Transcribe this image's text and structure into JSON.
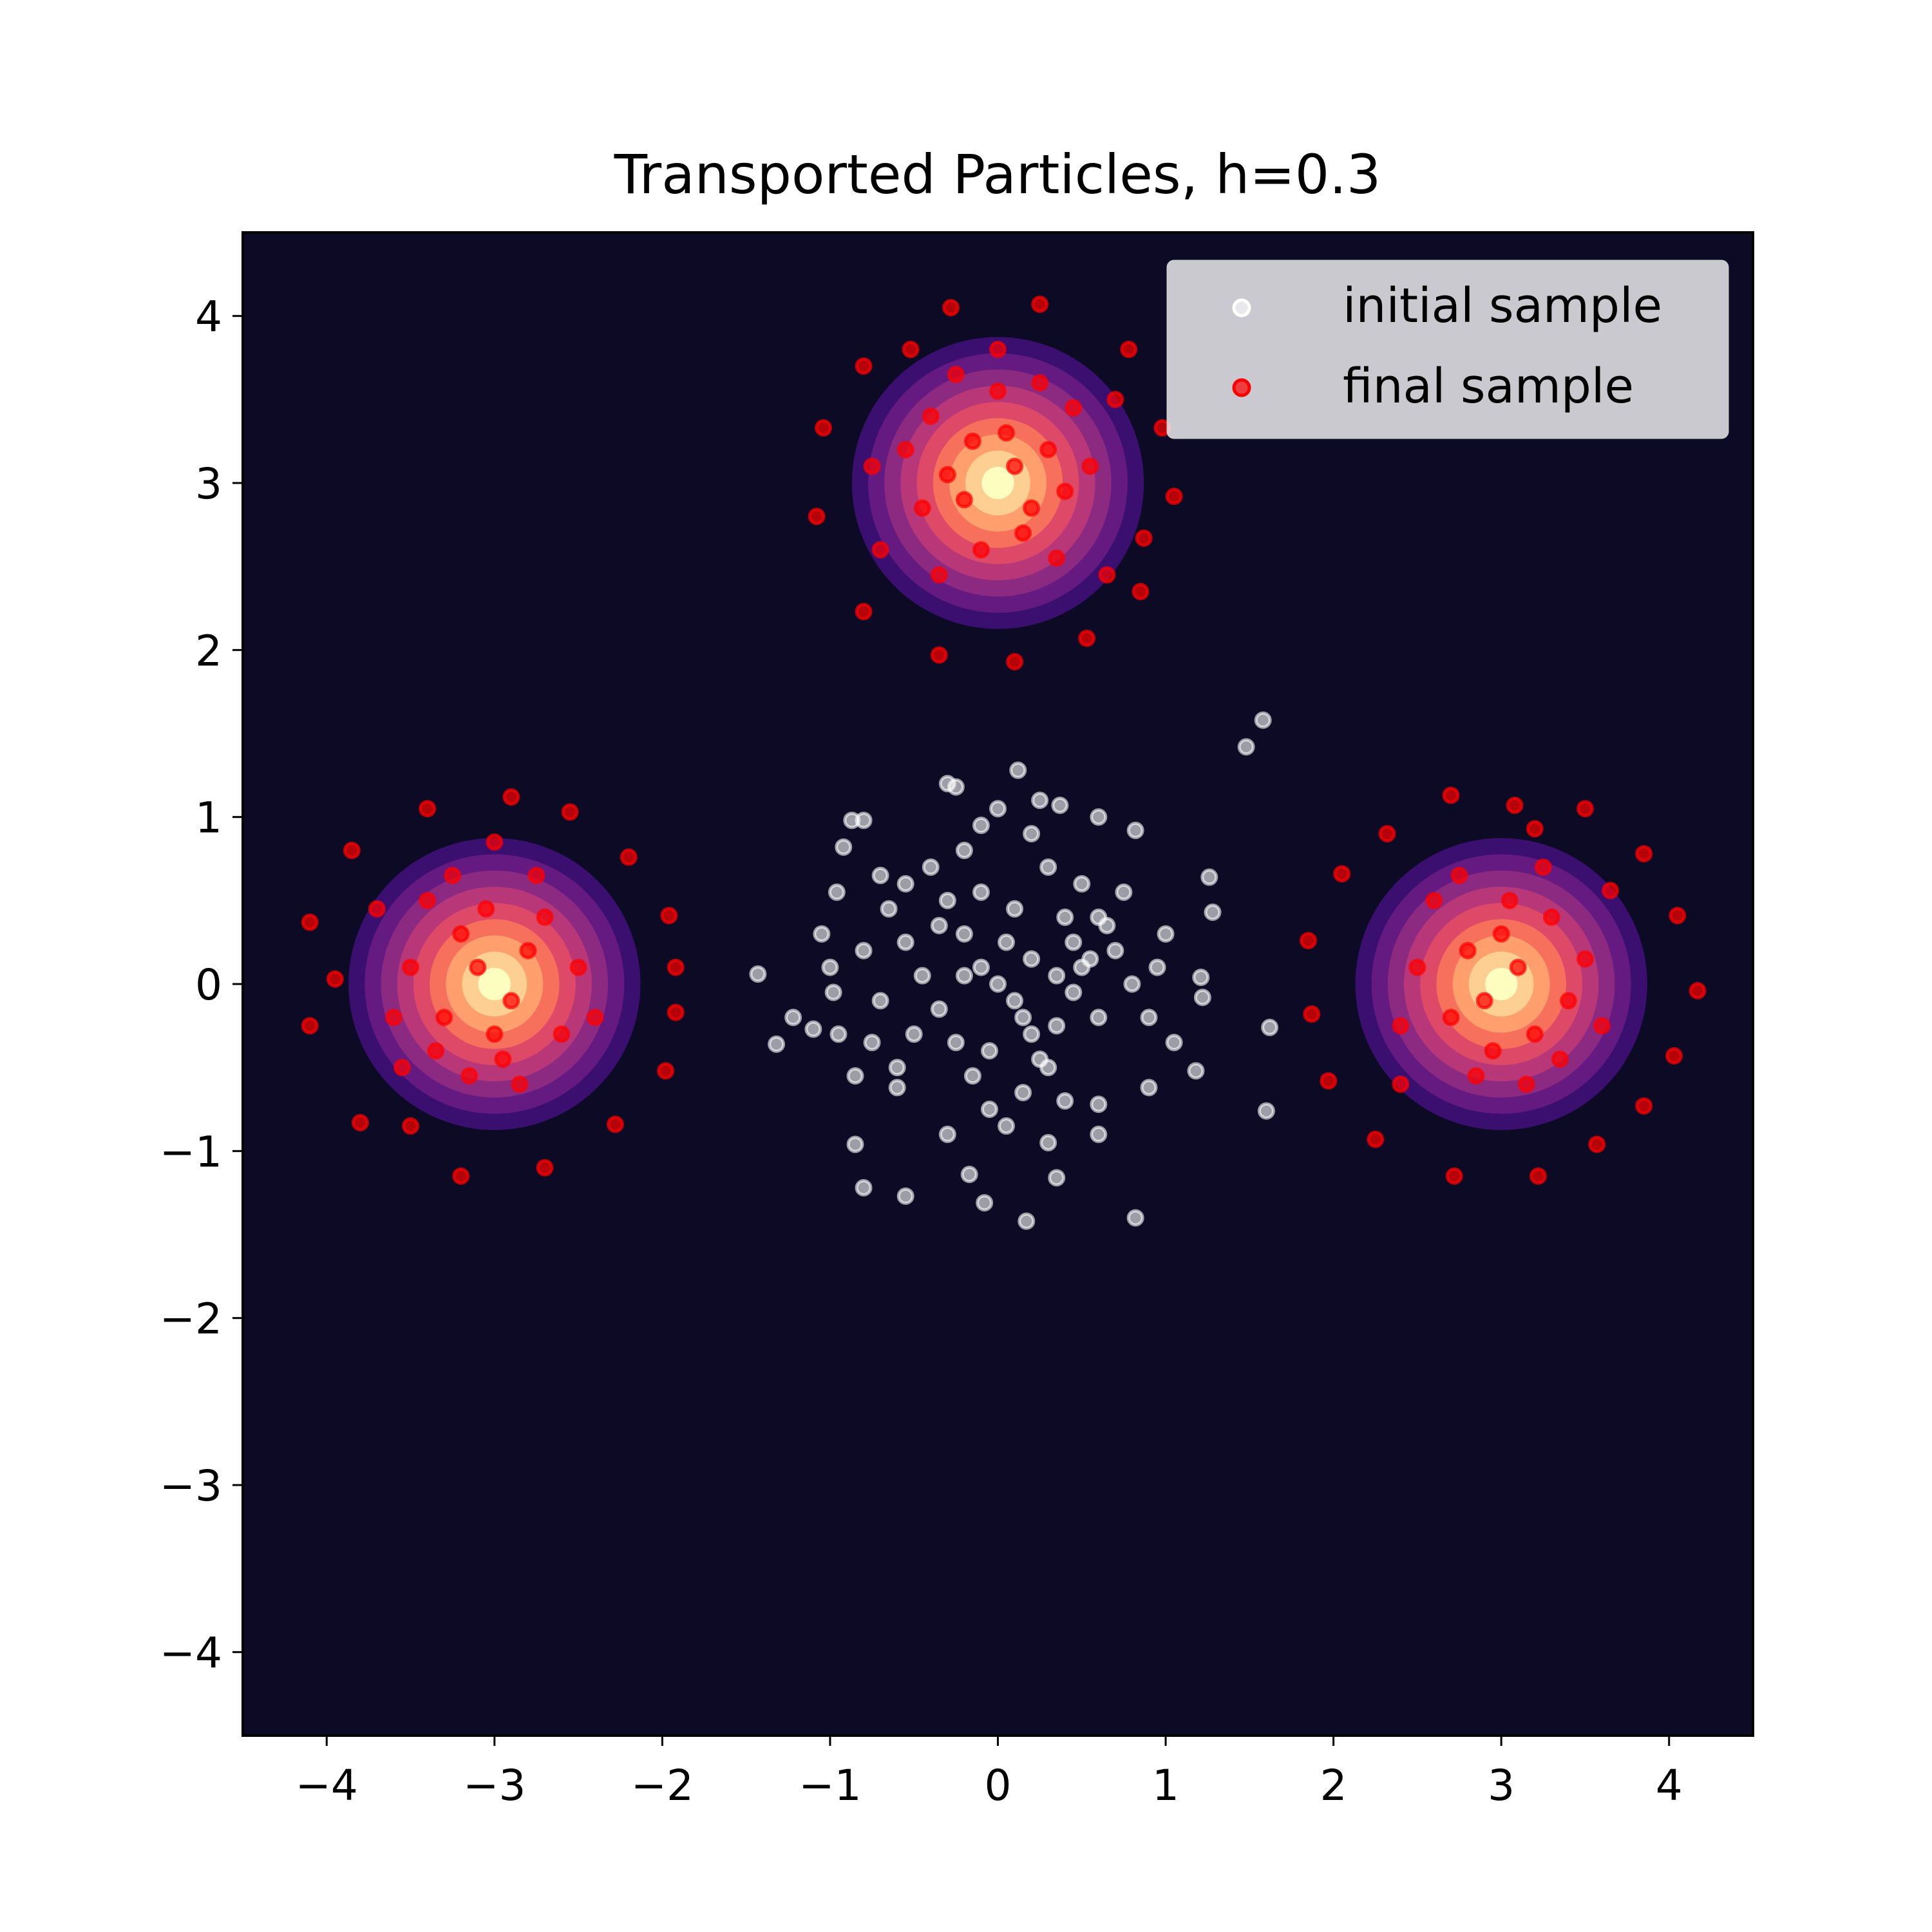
{
  "chart_data": {
    "type": "scatter",
    "title": "Transported Particles, h=0.3",
    "xlabel": "",
    "ylabel": "",
    "xlim": [
      -4.5,
      4.5
    ],
    "ylim": [
      -4.5,
      4.5
    ],
    "xticks": [
      -4,
      -3,
      -2,
      -1,
      0,
      1,
      2,
      3,
      4
    ],
    "yticks": [
      -4,
      -3,
      -2,
      -1,
      0,
      1,
      2,
      3,
      4
    ],
    "grid": false,
    "legend_position": "top-right",
    "background_color": "#0c0a24",
    "density_contours": {
      "centers": [
        [
          -3,
          0
        ],
        [
          0,
          3
        ],
        [
          3,
          0
        ]
      ],
      "sigma": 0.3,
      "colors": [
        "#3b0f70",
        "#641a80",
        "#8c2981",
        "#b73779",
        "#de4968",
        "#f7705c",
        "#fe9f6d",
        "#fecf92",
        "#fcfdbf"
      ]
    },
    "series": [
      {
        "name": "initial sample",
        "color": "#ffffff",
        "alpha": 0.6,
        "points": [
          [
            1.58,
            1.58
          ],
          [
            1.48,
            1.42
          ],
          [
            -0.3,
            1.2
          ],
          [
            -0.25,
            1.18
          ],
          [
            0.12,
            1.28
          ],
          [
            0.37,
            1.07
          ],
          [
            -1.43,
            0.06
          ],
          [
            -1.32,
            -0.36
          ],
          [
            -1.22,
            -0.2
          ],
          [
            -1.1,
            -0.27
          ],
          [
            -0.98,
            -0.05
          ],
          [
            -1.0,
            0.1
          ],
          [
            -0.96,
            0.55
          ],
          [
            -0.92,
            0.82
          ],
          [
            -0.87,
            0.98
          ],
          [
            -0.8,
            0.98
          ],
          [
            1.26,
            0.64
          ],
          [
            1.28,
            0.43
          ],
          [
            1.22,
            -0.08
          ],
          [
            1.21,
            0.04
          ],
          [
            1.18,
            -0.52
          ],
          [
            1.62,
            -0.26
          ],
          [
            1.6,
            -0.76
          ],
          [
            0.82,
            0.92
          ],
          [
            0.6,
            1.0
          ],
          [
            -0.85,
            -0.96
          ],
          [
            -0.8,
            -1.22
          ],
          [
            -0.55,
            -1.27
          ],
          [
            -0.08,
            -1.31
          ],
          [
            0.17,
            -1.42
          ],
          [
            0.82,
            -1.4
          ],
          [
            -0.17,
            -1.14
          ],
          [
            0.35,
            -1.16
          ],
          [
            -0.6,
            -0.62
          ],
          [
            0.9,
            -0.62
          ],
          [
            0.6,
            -0.72
          ],
          [
            -0.4,
            0.7
          ],
          [
            -0.3,
            0.5
          ],
          [
            -0.2,
            0.3
          ],
          [
            -0.1,
            0.1
          ],
          [
            0.0,
            0.0
          ],
          [
            0.1,
            -0.1
          ],
          [
            0.2,
            -0.3
          ],
          [
            0.3,
            -0.5
          ],
          [
            0.4,
            -0.7
          ],
          [
            0.5,
            0.6
          ],
          [
            0.6,
            0.4
          ],
          [
            0.7,
            0.2
          ],
          [
            0.8,
            0.0
          ],
          [
            0.9,
            -0.2
          ],
          [
            -0.5,
            -0.3
          ],
          [
            -0.6,
            -0.5
          ],
          [
            -0.7,
            -0.1
          ],
          [
            -0.8,
            0.2
          ],
          [
            -0.2,
            0.8
          ],
          [
            0.2,
            0.9
          ],
          [
            0.3,
            0.7
          ],
          [
            0.4,
            0.4
          ],
          [
            0.5,
            0.1
          ],
          [
            0.6,
            -0.2
          ],
          [
            -0.45,
            0.05
          ],
          [
            -0.35,
            -0.15
          ],
          [
            -0.25,
            -0.35
          ],
          [
            -0.15,
            -0.55
          ],
          [
            -0.05,
            -0.75
          ],
          [
            0.05,
            -0.85
          ],
          [
            0.15,
            -0.65
          ],
          [
            0.25,
            -0.45
          ],
          [
            0.35,
            -0.25
          ],
          [
            0.45,
            -0.05
          ],
          [
            0.55,
            0.15
          ],
          [
            0.65,
            0.35
          ],
          [
            0.75,
            0.55
          ],
          [
            -0.65,
            0.45
          ],
          [
            -0.55,
            0.25
          ],
          [
            -0.75,
            -0.35
          ],
          [
            -0.85,
            -0.55
          ],
          [
            -0.3,
            -0.9
          ],
          [
            0.3,
            -0.95
          ],
          [
            0.6,
            -0.9
          ],
          [
            -0.1,
            0.55
          ],
          [
            0.1,
            0.45
          ],
          [
            0.2,
            0.15
          ],
          [
            -0.2,
            0.05
          ],
          [
            -0.35,
            0.35
          ],
          [
            0.05,
            0.25
          ],
          [
            0.15,
            -0.2
          ],
          [
            -0.05,
            -0.4
          ],
          [
            0.35,
            0.05
          ],
          [
            0.45,
            0.25
          ],
          [
            -0.55,
            0.6
          ],
          [
            -0.7,
            0.65
          ],
          [
            1.0,
            0.3
          ],
          [
            1.05,
            -0.35
          ],
          [
            0.95,
            0.1
          ],
          [
            -1.05,
            0.3
          ],
          [
            -0.95,
            -0.3
          ],
          [
            0.0,
            1.05
          ],
          [
            -0.1,
            0.95
          ],
          [
            0.25,
            1.1
          ]
        ]
      },
      {
        "name": "final sample",
        "color": "#ff0000",
        "alpha": 0.7,
        "points": [
          [
            -3.0,
            0.85
          ],
          [
            -3.4,
            1.05
          ],
          [
            -2.9,
            1.12
          ],
          [
            -2.55,
            1.03
          ],
          [
            -2.2,
            0.76
          ],
          [
            -1.96,
            0.41
          ],
          [
            -1.92,
            0.1
          ],
          [
            -1.92,
            -0.17
          ],
          [
            -1.98,
            -0.52
          ],
          [
            -2.28,
            -0.84
          ],
          [
            -2.7,
            -1.1
          ],
          [
            -3.2,
            -1.15
          ],
          [
            -3.5,
            -0.85
          ],
          [
            -3.8,
            -0.83
          ],
          [
            -4.1,
            -0.25
          ],
          [
            -4.1,
            0.37
          ],
          [
            -3.95,
            0.03
          ],
          [
            -3.85,
            0.8
          ],
          [
            -3.7,
            0.45
          ],
          [
            -3.55,
            -0.5
          ],
          [
            -3.2,
            0.3
          ],
          [
            -3.1,
            0.1
          ],
          [
            -2.9,
            -0.1
          ],
          [
            -2.8,
            0.2
          ],
          [
            -3.0,
            -0.3
          ],
          [
            -3.3,
            -0.2
          ],
          [
            -2.7,
            0.4
          ],
          [
            -3.4,
            0.5
          ],
          [
            -2.6,
            -0.3
          ],
          [
            -3.15,
            -0.55
          ],
          [
            -2.85,
            -0.6
          ],
          [
            -3.5,
            0.1
          ],
          [
            -2.5,
            0.1
          ],
          [
            -3.25,
            0.65
          ],
          [
            -2.75,
            0.65
          ],
          [
            -3.6,
            -0.2
          ],
          [
            -2.4,
            -0.2
          ],
          [
            -3.05,
            0.45
          ],
          [
            -2.95,
            -0.45
          ],
          [
            -3.35,
            -0.4
          ],
          [
            0.0,
            3.8
          ],
          [
            -0.28,
            4.05
          ],
          [
            0.25,
            4.07
          ],
          [
            0.78,
            3.8
          ],
          [
            0.98,
            3.33
          ],
          [
            1.05,
            2.92
          ],
          [
            0.87,
            2.67
          ],
          [
            0.85,
            2.35
          ],
          [
            0.53,
            2.07
          ],
          [
            0.1,
            1.93
          ],
          [
            -0.35,
            1.97
          ],
          [
            -0.8,
            2.23
          ],
          [
            -1.08,
            2.8
          ],
          [
            -1.04,
            3.33
          ],
          [
            -0.8,
            3.7
          ],
          [
            -0.52,
            3.8
          ],
          [
            -0.7,
            2.6
          ],
          [
            0.7,
            3.5
          ],
          [
            -0.75,
            3.1
          ],
          [
            0.65,
            2.45
          ],
          [
            -0.15,
            3.25
          ],
          [
            0.1,
            3.1
          ],
          [
            0.2,
            2.85
          ],
          [
            -0.2,
            2.9
          ],
          [
            0.05,
            3.3
          ],
          [
            -0.3,
            3.05
          ],
          [
            0.3,
            3.2
          ],
          [
            0.15,
            2.7
          ],
          [
            -0.1,
            2.6
          ],
          [
            0.4,
            2.95
          ],
          [
            -0.45,
            2.85
          ],
          [
            0.45,
            3.45
          ],
          [
            -0.4,
            3.4
          ],
          [
            0.0,
            3.55
          ],
          [
            0.35,
            2.55
          ],
          [
            -0.35,
            2.45
          ],
          [
            0.55,
            3.1
          ],
          [
            -0.55,
            3.2
          ],
          [
            0.25,
            3.6
          ],
          [
            -0.25,
            3.65
          ],
          [
            2.7,
            1.13
          ],
          [
            3.08,
            1.07
          ],
          [
            3.5,
            1.05
          ],
          [
            3.85,
            0.78
          ],
          [
            4.05,
            0.41
          ],
          [
            4.17,
            -0.04
          ],
          [
            4.03,
            -0.43
          ],
          [
            3.85,
            -0.73
          ],
          [
            3.57,
            -0.96
          ],
          [
            3.22,
            -1.15
          ],
          [
            2.72,
            -1.15
          ],
          [
            2.25,
            -0.93
          ],
          [
            1.97,
            -0.58
          ],
          [
            1.87,
            -0.18
          ],
          [
            1.85,
            0.26
          ],
          [
            2.05,
            0.66
          ],
          [
            2.32,
            0.9
          ],
          [
            3.2,
            0.93
          ],
          [
            3.65,
            0.56
          ],
          [
            2.4,
            -0.6
          ],
          [
            3.0,
            0.3
          ],
          [
            3.1,
            0.1
          ],
          [
            2.9,
            -0.1
          ],
          [
            2.8,
            0.2
          ],
          [
            3.2,
            -0.3
          ],
          [
            2.7,
            -0.2
          ],
          [
            3.3,
            0.4
          ],
          [
            2.6,
            0.5
          ],
          [
            3.4,
            -0.1
          ],
          [
            2.85,
            -0.55
          ],
          [
            3.15,
            -0.6
          ],
          [
            2.5,
            0.1
          ],
          [
            3.5,
            0.15
          ],
          [
            2.75,
            0.65
          ],
          [
            3.25,
            0.7
          ],
          [
            2.4,
            -0.25
          ],
          [
            3.6,
            -0.25
          ],
          [
            3.05,
            0.5
          ],
          [
            2.95,
            -0.4
          ],
          [
            3.35,
            -0.45
          ]
        ]
      }
    ]
  }
}
